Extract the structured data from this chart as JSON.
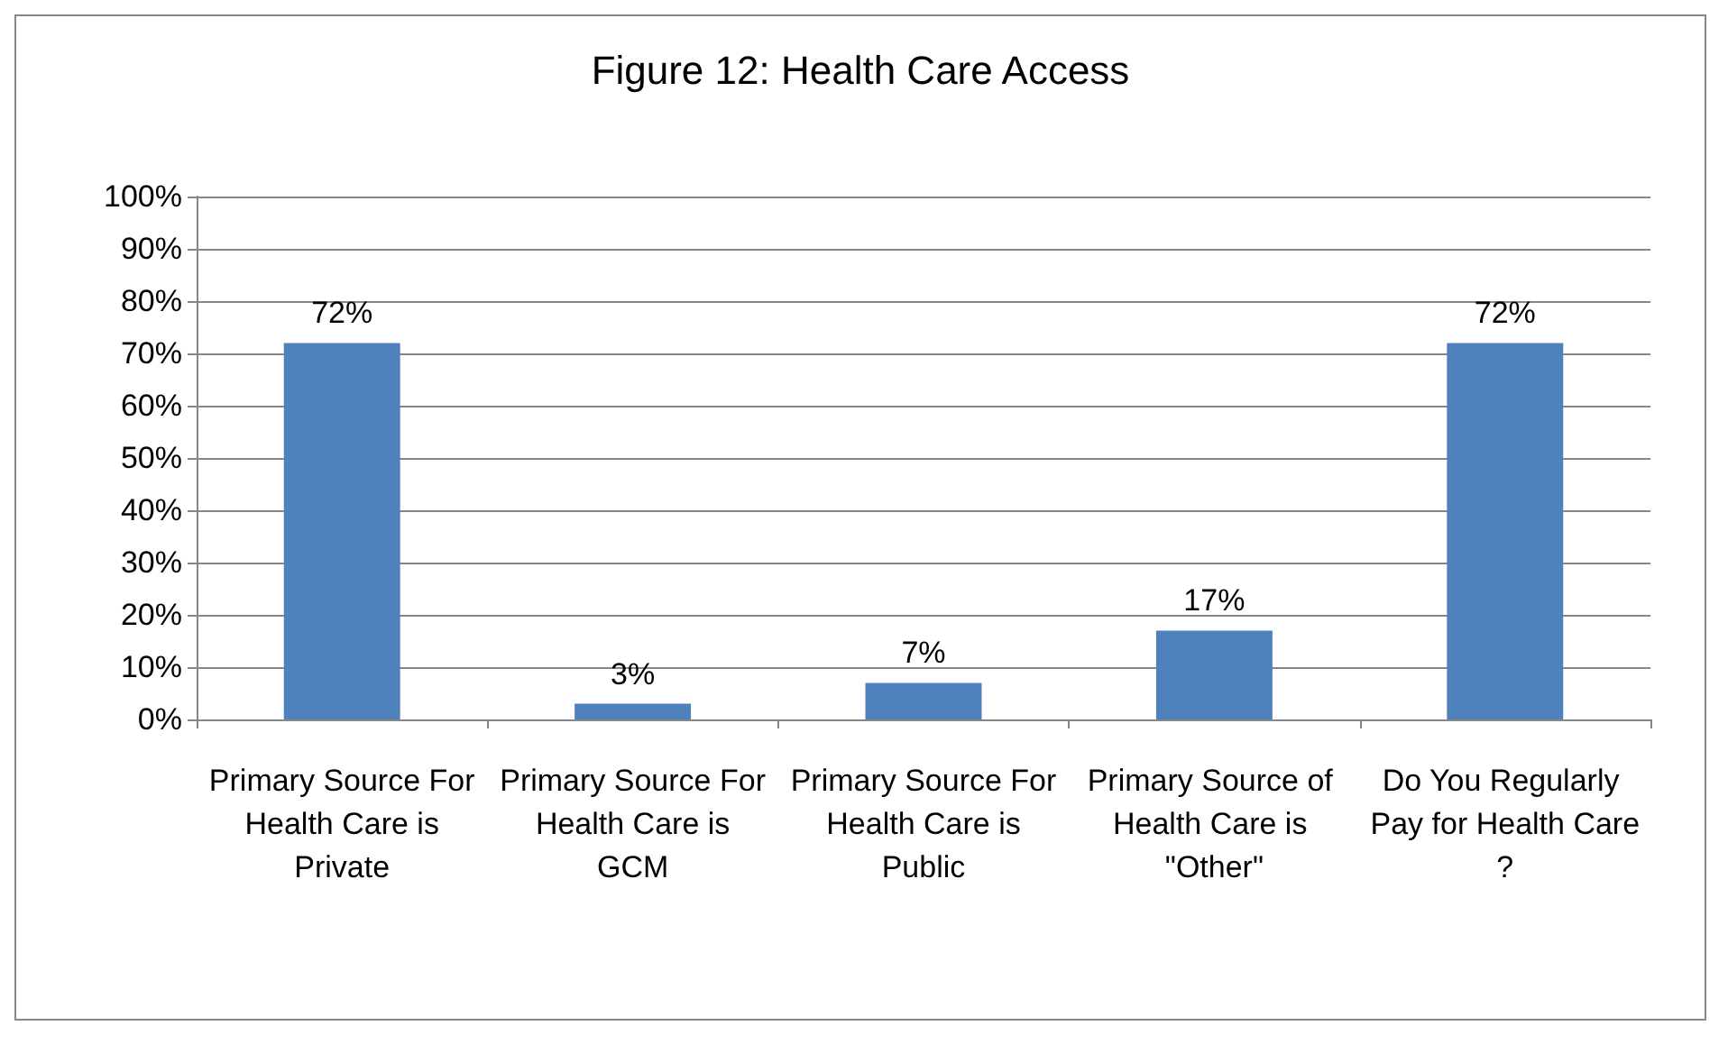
{
  "chart_data": {
    "type": "bar",
    "title": "Figure 12: Health Care Access",
    "categories": [
      "Primary Source For Health Care is Private",
      "Primary Source For Health Care is GCM",
      "Primary Source For Health Care is Public",
      "Primary Source of Health Care is \"Other\"",
      "Do You Regularly Pay for Health Care?"
    ],
    "values": [
      72,
      3,
      7,
      17,
      72
    ],
    "value_labels": [
      "72%",
      "3%",
      "7%",
      "17%",
      "72%"
    ],
    "color": "#4f81bd",
    "ylim": [
      0,
      100
    ],
    "yticks": [
      {
        "value": 0,
        "label": "0%"
      },
      {
        "value": 10,
        "label": "10%"
      },
      {
        "value": 20,
        "label": "20%"
      },
      {
        "value": 30,
        "label": "30%"
      },
      {
        "value": 40,
        "label": "40%"
      },
      {
        "value": 50,
        "label": "50%"
      },
      {
        "value": 60,
        "label": "60%"
      },
      {
        "value": 70,
        "label": "70%"
      },
      {
        "value": 80,
        "label": "80%"
      },
      {
        "value": 90,
        "label": "90%"
      },
      {
        "value": 100,
        "label": "100%"
      }
    ],
    "grid": "y"
  }
}
